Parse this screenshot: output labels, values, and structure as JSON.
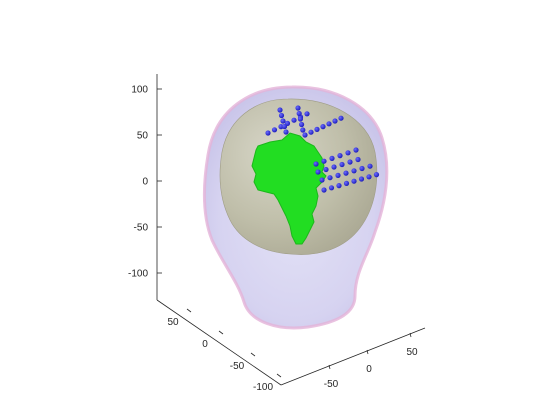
{
  "chart_data": {
    "type": "3d-scatter-surface",
    "title": "",
    "axes": {
      "z_ticks": [
        "100",
        "50",
        "0",
        "-50",
        "-100"
      ],
      "y_ticks": [
        "50",
        "0",
        "-50",
        "-100"
      ],
      "x_ticks": [
        "-50",
        "0",
        "50"
      ],
      "zlim": [
        -130,
        120
      ],
      "grid": false
    },
    "surfaces": [
      {
        "name": "",
        "role": "scalp",
        "color": "#c9c3ec",
        "edge_color": "#e6b8dc"
      },
      {
        "name": "",
        "role": "brain",
        "color": "#bcbc9c"
      },
      {
        "name": "",
        "role": "source-region",
        "color": "#22dd22"
      }
    ],
    "electrode_color": "#2222cc",
    "electrode_rows": [
      {
        "count": 7
      },
      {
        "count": 5
      },
      {
        "count": 5
      },
      {
        "count": 7
      },
      {
        "count": 6
      },
      {
        "count": 6
      },
      {
        "count": 7
      },
      {
        "count": 8
      }
    ]
  }
}
